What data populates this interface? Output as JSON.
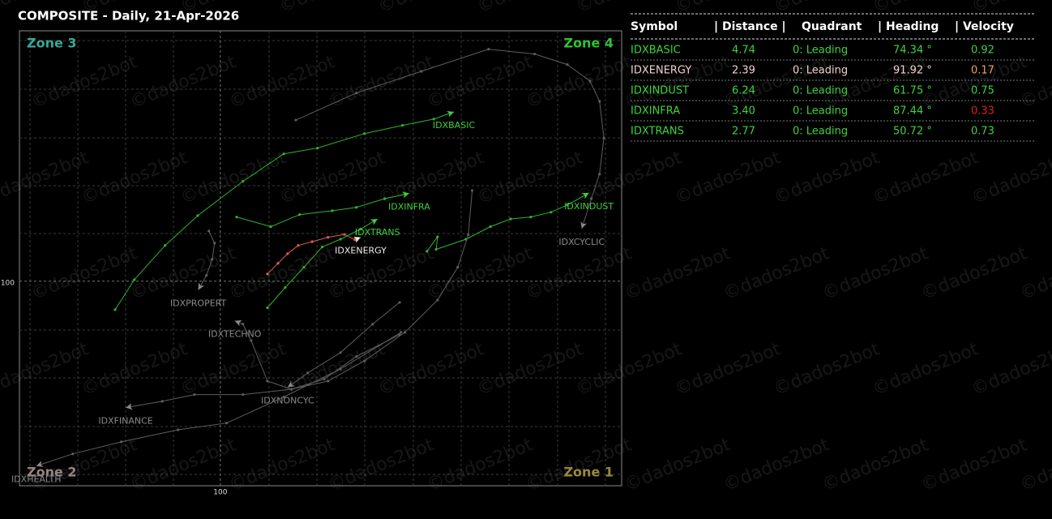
{
  "chart_data": {
    "type": "rotation",
    "title": "COMPOSITE - Daily, 21-Apr-2026",
    "xlim": [
      95.82,
      108.35
    ],
    "ylim": [
      95.76,
      105.19
    ],
    "xticks": [
      100
    ],
    "yticks": [
      100
    ],
    "grid": true,
    "zones": [
      {
        "label": "Zone 3",
        "corner": "top-left",
        "color": "#3aa89a"
      },
      {
        "label": "Zone 4",
        "corner": "top-right",
        "color": "#2fc42f"
      },
      {
        "label": "Zone 2",
        "corner": "bottom-left",
        "color": "#9a8483"
      },
      {
        "label": "Zone 1",
        "corner": "bottom-right",
        "color": "#9a8a40"
      }
    ],
    "series": [
      {
        "name": "IDXBASIC",
        "color": "#2db52d",
        "label_color": "#3ed23e",
        "x": [
          97.81,
          98.21,
          98.85,
          99.53,
          100.47,
          101.32,
          102.02,
          103.0,
          103.79,
          104.44,
          104.86
        ],
        "values": [
          99.41,
          100.03,
          100.74,
          101.36,
          102.07,
          102.64,
          102.76,
          103.06,
          103.23,
          103.36,
          103.51
        ]
      },
      {
        "name": "IDXENERGY",
        "color": "#e0604e",
        "label_color": "#f2ecec",
        "x": [
          100.98,
          101.2,
          101.4,
          101.62,
          101.91,
          102.24,
          102.58,
          102.8,
          102.92
        ],
        "values": [
          100.15,
          100.37,
          100.57,
          100.74,
          100.82,
          100.91,
          100.97,
          100.86,
          100.91
        ]
      },
      {
        "name": "IDXINDUST",
        "color": "#2db52d",
        "label_color": "#3ed23e",
        "x": [
          104.3,
          104.52,
          104.49,
          105.11,
          105.62,
          106.04,
          106.46,
          106.88,
          107.22,
          107.67
        ],
        "values": [
          100.62,
          100.92,
          100.66,
          100.87,
          101.13,
          101.29,
          101.33,
          101.43,
          101.58,
          101.83
        ]
      },
      {
        "name": "IDXINFRA",
        "color": "#2db52d",
        "label_color": "#3ed23e",
        "x": [
          100.34,
          101.05,
          101.65,
          102.33,
          102.83,
          103.42,
          103.93
        ],
        "values": [
          101.33,
          101.13,
          101.38,
          101.46,
          101.53,
          101.71,
          101.82
        ]
      },
      {
        "name": "IDXTRANS",
        "color": "#2db52d",
        "label_color": "#3ed23e",
        "x": [
          100.98,
          101.35,
          101.74,
          102.12,
          102.5,
          102.92,
          103.27
        ],
        "values": [
          99.45,
          99.87,
          100.29,
          100.71,
          100.87,
          101.08,
          101.29
        ]
      },
      {
        "name": "IDXCYCLIC",
        "color": "#5e5e5e",
        "label_color": "#8a8a8a",
        "x": [
          101.57,
          102.83,
          104.18,
          105.58,
          106.54,
          107.22,
          107.69,
          107.89,
          107.98,
          107.89,
          107.72,
          107.52
        ],
        "values": [
          103.34,
          103.9,
          104.35,
          104.81,
          104.71,
          104.49,
          104.15,
          103.73,
          102.97,
          102.22,
          101.71,
          101.09
        ]
      },
      {
        "name": "IDXPROPERT",
        "color": "#5e5e5e",
        "label_color": "#8a8a8a",
        "x": [
          99.76,
          99.88,
          99.83,
          99.71,
          99.54
        ],
        "values": [
          101.04,
          100.79,
          100.45,
          100.12,
          99.82
        ]
      },
      {
        "name": "IDXTECHNO",
        "color": "#5e5e5e",
        "label_color": "#8a8a8a",
        "x": [
          105.24,
          105.16,
          104.94,
          104.52,
          103.84,
          103.0,
          102.24,
          101.48,
          100.98,
          100.64,
          100.47,
          100.3
        ],
        "values": [
          101.88,
          100.96,
          100.29,
          99.61,
          98.94,
          98.35,
          97.93,
          97.76,
          97.93,
          98.77,
          99.11,
          99.18
        ]
      },
      {
        "name": "IDXNONCYC",
        "color": "#5e5e5e",
        "label_color": "#8a8a8a",
        "x": [
          103.73,
          103.17,
          102.5,
          101.82,
          101.4
        ],
        "values": [
          99.56,
          99.11,
          98.52,
          98.1,
          97.8
        ]
      },
      {
        "name": "IDXFINANCE",
        "color": "#5e5e5e",
        "label_color": "#8a8a8a",
        "x": [
          103.73,
          102.83,
          102.16,
          101.48,
          100.47,
          99.46,
          98.79,
          98.03
        ],
        "values": [
          98.89,
          98.44,
          97.97,
          97.76,
          97.65,
          97.65,
          97.51,
          97.38
        ]
      },
      {
        "name": "IDXHEALTH",
        "color": "#5e5e5e",
        "label_color": "#8a8a8a",
        "x": [
          103.76,
          102.5,
          101.32,
          100.13,
          99.12,
          97.94,
          96.93,
          96.17
        ],
        "values": [
          98.94,
          98.18,
          97.6,
          97.06,
          96.92,
          96.67,
          96.42,
          96.17
        ]
      }
    ]
  },
  "table": {
    "columns": [
      "Symbol",
      "| Distance |",
      "Quadrant",
      "| Heading",
      "| Velocity"
    ],
    "rows": [
      {
        "cells": [
          "IDXBASIC",
          "4.74",
          "0: Leading",
          "74.34 °",
          "0.92"
        ],
        "colors": [
          "#3ed23e",
          "#3ed23e",
          "#3ed23e",
          "#3ed23e",
          "#3ed23e"
        ]
      },
      {
        "cells": [
          "IDXENERGY",
          "2.39",
          "0: Leading",
          "91.92 °",
          "0.17"
        ],
        "colors": [
          "#f2d0d0",
          "#f2d0d0",
          "#f2d0d0",
          "#f2d0d0",
          "#f0a060"
        ]
      },
      {
        "cells": [
          "IDXINDUST",
          "6.24",
          "0: Leading",
          "61.75 °",
          "0.75"
        ],
        "colors": [
          "#3ed23e",
          "#3ed23e",
          "#3ed23e",
          "#3ed23e",
          "#3ed23e"
        ]
      },
      {
        "cells": [
          "IDXINFRA",
          "3.40",
          "0: Leading",
          "87.44 °",
          "0.33"
        ],
        "colors": [
          "#3ed23e",
          "#3ed23e",
          "#3ed23e",
          "#3ed23e",
          "#e02020"
        ]
      },
      {
        "cells": [
          "IDXTRANS",
          "2.77",
          "0: Leading",
          "50.72 °",
          "0.73"
        ],
        "colors": [
          "#3ed23e",
          "#3ed23e",
          "#3ed23e",
          "#3ed23e",
          "#3ed23e"
        ]
      }
    ]
  },
  "watermark": "©dados2bot"
}
